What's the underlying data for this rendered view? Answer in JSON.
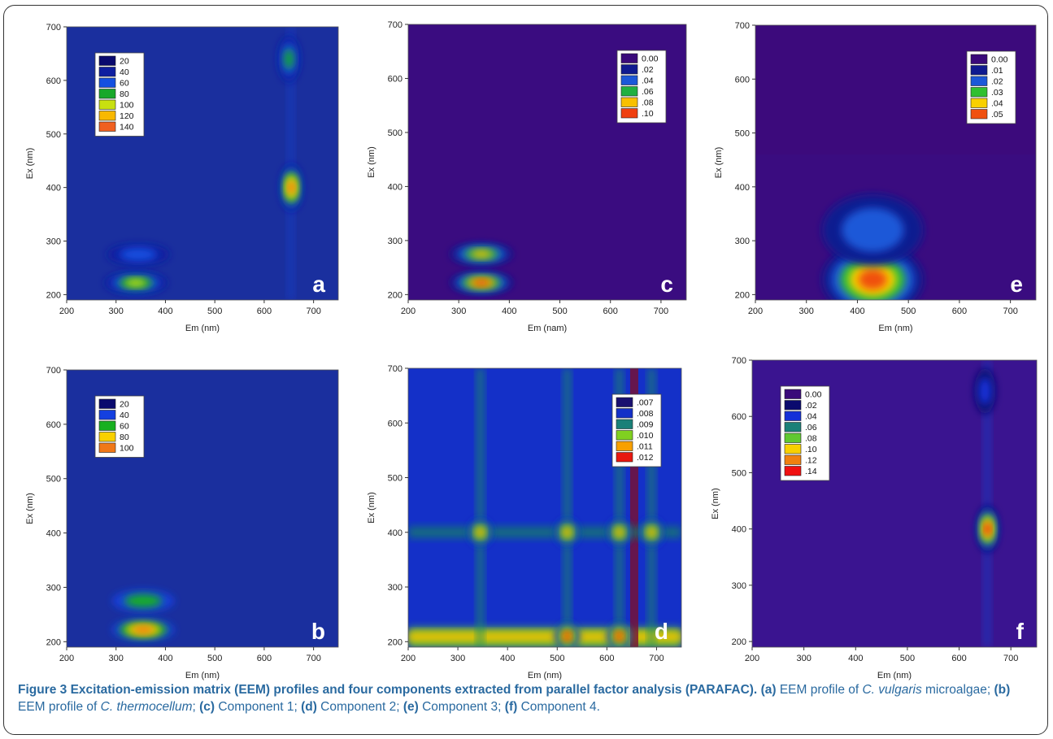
{
  "figure": {
    "caption_bold": "Figure 3 Excitation-emission matrix (EEM) profiles and four components extracted from parallel factor analysis (PARAFAC).",
    "caption_parts": [
      {
        "t": " "
      },
      {
        "t": "(a)",
        "b": true
      },
      {
        "t": " EEM profile of "
      },
      {
        "t": "C. vulgaris",
        "i": true
      },
      {
        "t": " microalgae; "
      },
      {
        "t": "(b)",
        "b": true
      },
      {
        "t": " EEM profile of "
      },
      {
        "t": "C. thermocellum",
        "i": true
      },
      {
        "t": "; "
      },
      {
        "t": "(c)",
        "b": true
      },
      {
        "t": " Component 1; "
      },
      {
        "t": "(d)",
        "b": true
      },
      {
        "t": " Component 2; "
      },
      {
        "t": "(e)",
        "b": true
      },
      {
        "t": " Component 3; "
      },
      {
        "t": "(f)",
        "b": true
      },
      {
        "t": " Component 4."
      }
    ]
  },
  "chart_data": [
    {
      "id": "a",
      "type": "heatmap",
      "panel_letter": "a",
      "xlabel": "Em (nm)",
      "ylabel": "Ex (nm)",
      "xlim": [
        200,
        750
      ],
      "ylim": [
        190,
        700
      ],
      "xticks": [
        200,
        300,
        400,
        500,
        600,
        700
      ],
      "yticks": [
        200,
        300,
        400,
        500,
        600,
        700
      ],
      "legend_position": "top-left",
      "legend": [
        {
          "label": "20",
          "color": "#0a0a6e"
        },
        {
          "label": "40",
          "color": "#0f1fa0"
        },
        {
          "label": "60",
          "color": "#1450e0"
        },
        {
          "label": "80",
          "color": "#18a82a"
        },
        {
          "label": "100",
          "color": "#c8e010"
        },
        {
          "label": "120",
          "color": "#f8b800"
        },
        {
          "label": "140",
          "color": "#f06020"
        }
      ],
      "background": "#1a2f9e",
      "peaks": [
        {
          "em": 655,
          "ex": 400,
          "intensity": 140
        },
        {
          "em": 650,
          "ex": 640,
          "intensity": 60
        },
        {
          "em": 345,
          "ex": 275,
          "intensity": 55
        },
        {
          "em": 340,
          "ex": 222,
          "intensity": 85
        }
      ]
    },
    {
      "id": "c",
      "type": "heatmap",
      "panel_letter": "c",
      "xlabel": "Em (nam)",
      "ylabel": "Ex (nm)",
      "xlim": [
        200,
        750
      ],
      "ylim": [
        190,
        700
      ],
      "xticks": [
        200,
        300,
        400,
        500,
        600,
        700
      ],
      "yticks": [
        200,
        300,
        400,
        500,
        600,
        700
      ],
      "legend_position": "top-right",
      "legend": [
        {
          "label": "0.00",
          "color": "#3a0a7a"
        },
        {
          "label": ".02",
          "color": "#0f1a90"
        },
        {
          "label": ".04",
          "color": "#1c58d8"
        },
        {
          "label": ".06",
          "color": "#20b040"
        },
        {
          "label": ".08",
          "color": "#f8c000"
        },
        {
          "label": ".10",
          "color": "#f04010"
        }
      ],
      "background": "#3a0c80",
      "peaks": [
        {
          "em": 345,
          "ex": 222,
          "intensity": 0.1
        },
        {
          "em": 345,
          "ex": 275,
          "intensity": 0.07
        }
      ]
    },
    {
      "id": "e",
      "type": "heatmap",
      "panel_letter": "e",
      "xlabel": "Em (nm)",
      "ylabel": "Ex (nm)",
      "xlim": [
        200,
        750
      ],
      "ylim": [
        190,
        700
      ],
      "xticks": [
        200,
        300,
        400,
        500,
        600,
        700
      ],
      "yticks": [
        200,
        300,
        400,
        500,
        600,
        700
      ],
      "legend_position": "top-right",
      "legend": [
        {
          "label": "0.00",
          "color": "#3a0a7a"
        },
        {
          "label": ".01",
          "color": "#0f1a90"
        },
        {
          "label": ".02",
          "color": "#1c58d8"
        },
        {
          "label": ".03",
          "color": "#30c030"
        },
        {
          "label": ".04",
          "color": "#f8d000"
        },
        {
          "label": ".05",
          "color": "#f05010"
        }
      ],
      "background": "#3a0c80",
      "peaks": [
        {
          "em": 430,
          "ex": 228,
          "intensity": 0.05
        },
        {
          "em": 430,
          "ex": 320,
          "intensity": 0.02
        }
      ]
    },
    {
      "id": "b",
      "type": "heatmap",
      "panel_letter": "b",
      "xlabel": "Em (nm)",
      "ylabel": "Ex (nm)",
      "xlim": [
        200,
        750
      ],
      "ylim": [
        190,
        700
      ],
      "xticks": [
        200,
        300,
        400,
        500,
        600,
        700
      ],
      "yticks": [
        200,
        300,
        400,
        500,
        600,
        700
      ],
      "legend_position": "top-left",
      "legend": [
        {
          "label": "20",
          "color": "#0a0a6e"
        },
        {
          "label": "40",
          "color": "#1440e0"
        },
        {
          "label": "60",
          "color": "#18b020"
        },
        {
          "label": "80",
          "color": "#f8d000"
        },
        {
          "label": "100",
          "color": "#f07818"
        }
      ],
      "background": "#1a2f9e",
      "peaks": [
        {
          "em": 355,
          "ex": 222,
          "intensity": 100
        },
        {
          "em": 355,
          "ex": 275,
          "intensity": 60
        }
      ]
    },
    {
      "id": "d",
      "type": "heatmap",
      "panel_letter": "d",
      "xlabel": "Em (nm)",
      "ylabel": "Ex (nm)",
      "xlim": [
        200,
        750
      ],
      "ylim": [
        190,
        700
      ],
      "xticks": [
        200,
        300,
        400,
        500,
        600,
        700
      ],
      "yticks": [
        200,
        300,
        400,
        500,
        600,
        700
      ],
      "legend_position": "top-right",
      "legend": [
        {
          "label": ".007",
          "color": "#1a1070"
        },
        {
          "label": ".008",
          "color": "#1430c8"
        },
        {
          "label": ".009",
          "color": "#1a8078"
        },
        {
          "label": ".010",
          "color": "#80d020"
        },
        {
          "label": ".011",
          "color": "#f8a000"
        },
        {
          "label": ".012",
          "color": "#e81810"
        }
      ],
      "background": "#1430c8",
      "peaks": [
        {
          "em": 520,
          "ex": 210,
          "intensity": 0.012
        },
        {
          "em": 625,
          "ex": 210,
          "intensity": 0.012
        },
        {
          "em": 520,
          "ex": 400,
          "intensity": 0.01
        },
        {
          "em": 625,
          "ex": 400,
          "intensity": 0.01
        },
        {
          "em": 345,
          "ex": 400,
          "intensity": 0.0095
        },
        {
          "em": 690,
          "ex": 400,
          "intensity": 0.0095
        }
      ]
    },
    {
      "id": "f",
      "type": "heatmap",
      "panel_letter": "f",
      "xlabel": "Em (nm)",
      "ylabel": "Ex (nm)",
      "xlim": [
        200,
        750
      ],
      "ylim": [
        190,
        700
      ],
      "xticks": [
        200,
        300,
        400,
        500,
        600,
        700
      ],
      "yticks": [
        200,
        300,
        400,
        500,
        600,
        700
      ],
      "legend_position": "top-left",
      "legend": [
        {
          "label": "0.00",
          "color": "#3a0a7a"
        },
        {
          "label": ".02",
          "color": "#0a0a6e"
        },
        {
          "label": ".04",
          "color": "#1430d8"
        },
        {
          "label": ".06",
          "color": "#1a8078"
        },
        {
          "label": ".08",
          "color": "#60c830"
        },
        {
          "label": ".10",
          "color": "#f8d000"
        },
        {
          "label": ".12",
          "color": "#f08010"
        },
        {
          "label": ".14",
          "color": "#f01010"
        }
      ],
      "background": "#3a1490",
      "peaks": [
        {
          "em": 655,
          "ex": 400,
          "intensity": 0.14
        },
        {
          "em": 650,
          "ex": 645,
          "intensity": 0.04
        }
      ]
    }
  ]
}
